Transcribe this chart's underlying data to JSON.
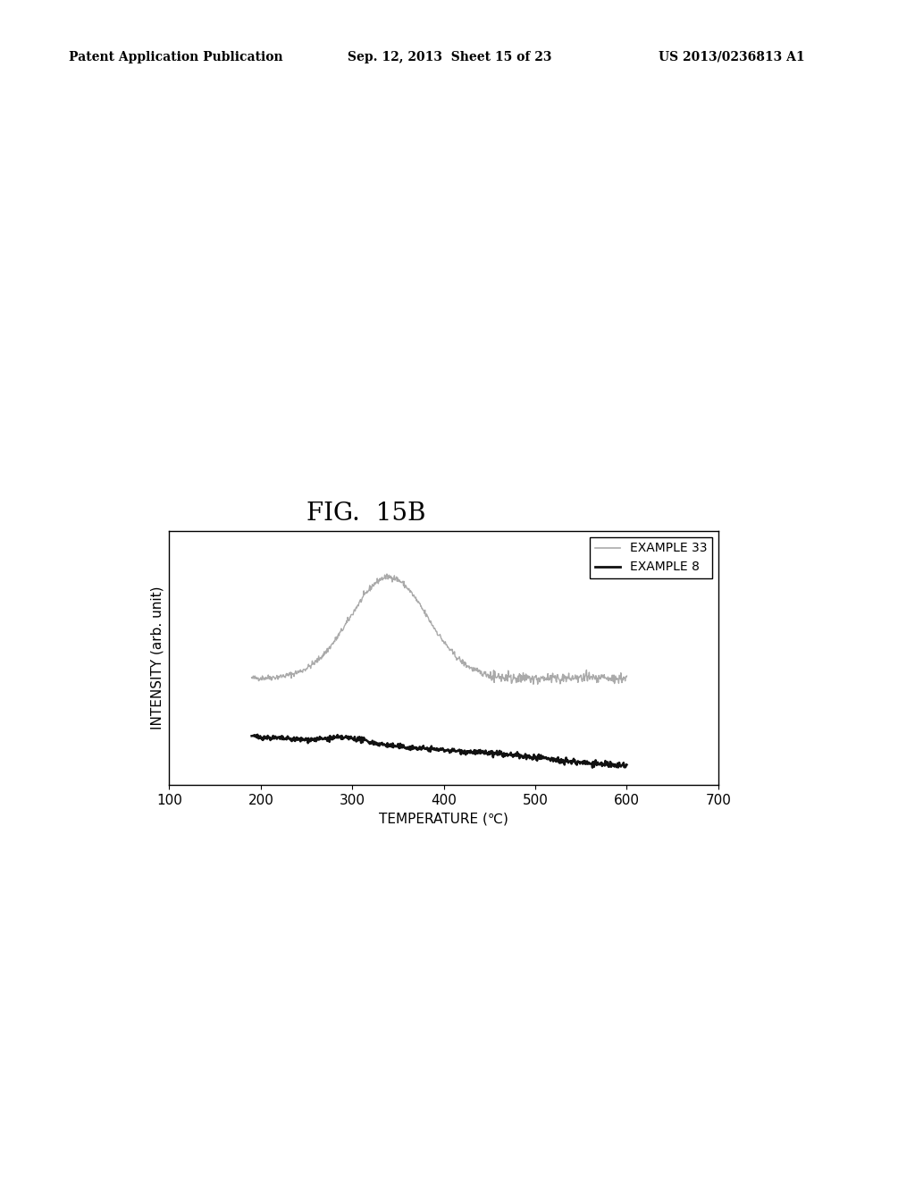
{
  "title": "FIG.  15B",
  "header_left": "Patent Application Publication",
  "header_center": "Sep. 12, 2013  Sheet 15 of 23",
  "header_right": "US 2013/0236813 A1",
  "xlabel": "TEMPERATURE (℃)",
  "ylabel": "INTENSITY (arb. unit)",
  "xlim": [
    100,
    700
  ],
  "xticks": [
    100,
    200,
    300,
    400,
    500,
    600,
    700
  ],
  "xtick_labels": [
    "100",
    "200",
    "300",
    "400",
    "500",
    "600",
    "700"
  ],
  "legend_labels": [
    "EXAMPLE 33",
    "EXAMPLE 8"
  ],
  "line33_color": "#aaaaaa",
  "line8_color": "#111111",
  "background_color": "#ffffff",
  "plot_bg_color": "#ffffff",
  "title_fontsize": 20,
  "header_fontsize": 10,
  "axis_label_fontsize": 11,
  "tick_fontsize": 11,
  "legend_fontsize": 10
}
